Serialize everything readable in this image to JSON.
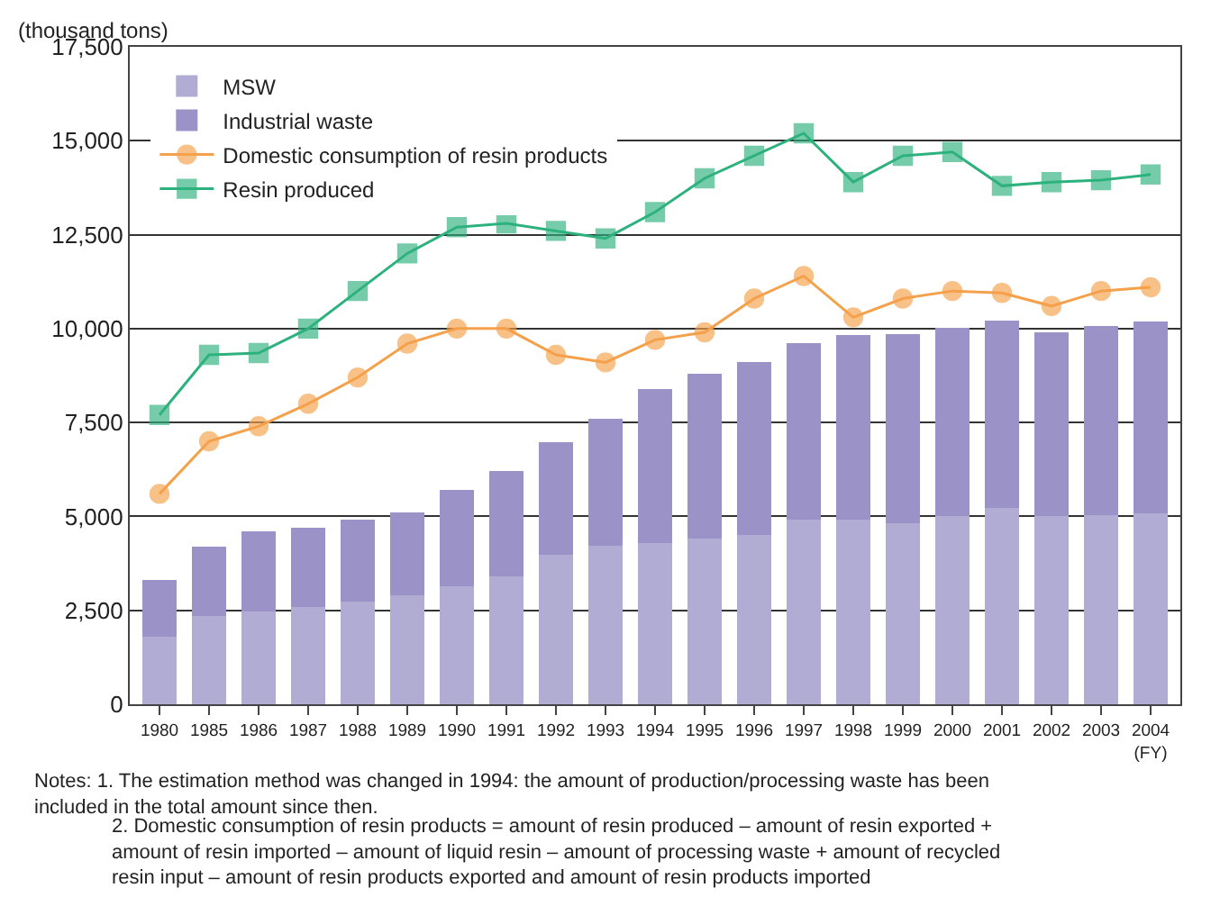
{
  "chart_data": {
    "type": "bar",
    "stacked": true,
    "ylabel": "(thousand tons)",
    "categories": [
      "1980",
      "1985",
      "1986",
      "1987",
      "1988",
      "1989",
      "1990",
      "1991",
      "1992",
      "1993",
      "1994",
      "1995",
      "1996",
      "1997",
      "1998",
      "1999",
      "2000",
      "2001",
      "2002",
      "2003",
      "2004 (FY)"
    ],
    "series": [
      {
        "name": "MSW",
        "color": "#b1acd4",
        "values": [
          1800,
          2350,
          2480,
          2600,
          2740,
          2910,
          3140,
          3400,
          3980,
          4210,
          4290,
          4420,
          4510,
          4910,
          4910,
          4820,
          5000,
          5220,
          5000,
          5030,
          5090
        ]
      },
      {
        "name": "Industrial waste",
        "color": "#9b93c7",
        "values": [
          1500,
          1850,
          2120,
          2100,
          2170,
          2190,
          2570,
          2810,
          2990,
          3390,
          4110,
          4390,
          4600,
          4700,
          4910,
          5040,
          5010,
          5000,
          4910,
          5040,
          5100
        ]
      },
      {
        "name": "Domestic consumption of resin products",
        "type": "line",
        "marker": "circle",
        "color": "#f5a04a",
        "values": [
          5600,
          7000,
          7400,
          8000,
          8700,
          9600,
          10000,
          10000,
          9300,
          9100,
          9700,
          9900,
          10800,
          11400,
          10300,
          10800,
          11000,
          10950,
          10600,
          11000,
          11100
        ]
      },
      {
        "name": "Resin produced",
        "type": "line",
        "marker": "square",
        "color": "#2db27d",
        "values": [
          7700,
          9300,
          9350,
          10000,
          11000,
          12000,
          12700,
          12800,
          12600,
          12400,
          13100,
          14000,
          14600,
          15200,
          13900,
          14600,
          14700,
          13800,
          13900,
          13950,
          14100
        ]
      }
    ],
    "ylim": [
      0,
      17500
    ],
    "yticks": [
      0,
      {
        "value": 2500,
        "label": "2,500"
      },
      {
        "value": 5000,
        "label": "5,000"
      },
      {
        "value": 7500,
        "label": "7,500"
      },
      {
        "value": 10000,
        "label": "10,000"
      },
      {
        "value": 12500,
        "label": "12,500"
      },
      {
        "value": 15000,
        "label": "15,000"
      },
      {
        "value": 17500,
        "label": "17,500"
      }
    ],
    "grid": "y",
    "legend": "top left",
    "annotations": [
      "Notes: 1. The estimation method was changed in 1994: the amount of production/processing waste has been included in the total amount since then.",
      "2. Domestic consumption of resin products = amount of resin produced – amount of resin exported + amount of resin imported – amount of liquid resin – amount of processing waste + amount of recycled resin input – amount of resin products exported and amount of resin products imported"
    ]
  }
}
